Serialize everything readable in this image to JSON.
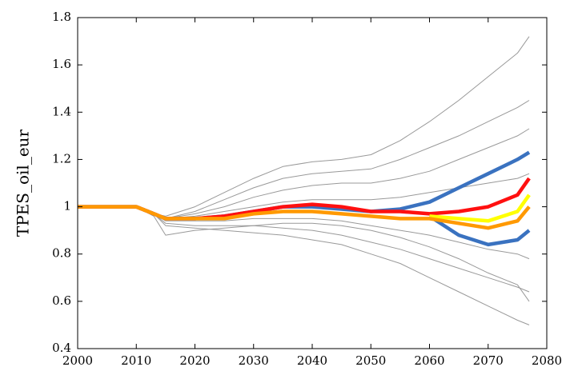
{
  "chart_data": {
    "type": "line",
    "y_label": "TPES_oil_eur",
    "x": [
      2000,
      2010,
      2013,
      2015,
      2020,
      2025,
      2030,
      2035,
      2040,
      2045,
      2050,
      2055,
      2060,
      2065,
      2070,
      2075,
      2077
    ],
    "xlim": [
      2000,
      2080
    ],
    "xticks": [
      2000,
      2010,
      2020,
      2030,
      2040,
      2050,
      2060,
      2070,
      2080
    ],
    "ylim": [
      0.4,
      1.8
    ],
    "yticks": [
      0.4,
      0.6,
      0.8,
      1,
      1.2,
      1.4,
      1.6,
      1.8
    ],
    "grid": false,
    "series": [
      {
        "color": "#999999",
        "values": [
          1,
          1,
          0.97,
          0.96,
          1.0,
          1.06,
          1.12,
          1.17,
          1.19,
          1.2,
          1.22,
          1.28,
          1.36,
          1.45,
          1.55,
          1.65,
          1.72
        ]
      },
      {
        "color": "#999999",
        "values": [
          1,
          1,
          0.97,
          0.95,
          0.98,
          1.03,
          1.08,
          1.12,
          1.14,
          1.15,
          1.16,
          1.2,
          1.25,
          1.3,
          1.36,
          1.42,
          1.45
        ]
      },
      {
        "color": "#999999",
        "values": [
          1,
          1,
          0.97,
          0.95,
          0.97,
          1.0,
          1.04,
          1.07,
          1.09,
          1.1,
          1.1,
          1.12,
          1.15,
          1.2,
          1.25,
          1.3,
          1.33
        ]
      },
      {
        "color": "#999999",
        "values": [
          1,
          1,
          0.97,
          0.95,
          0.96,
          0.98,
          1.0,
          1.02,
          1.03,
          1.03,
          1.03,
          1.04,
          1.06,
          1.08,
          1.1,
          1.12,
          1.14
        ]
      },
      {
        "color": "#999999",
        "values": [
          1,
          1,
          0.97,
          0.94,
          0.94,
          0.94,
          0.95,
          0.95,
          0.95,
          0.94,
          0.92,
          0.9,
          0.88,
          0.85,
          0.82,
          0.8,
          0.78
        ]
      },
      {
        "color": "#999999",
        "values": [
          1,
          1,
          0.97,
          0.93,
          0.92,
          0.92,
          0.92,
          0.91,
          0.9,
          0.88,
          0.85,
          0.82,
          0.78,
          0.74,
          0.7,
          0.66,
          0.64
        ]
      },
      {
        "color": "#999999",
        "values": [
          1,
          1,
          0.97,
          0.92,
          0.91,
          0.9,
          0.89,
          0.88,
          0.86,
          0.84,
          0.8,
          0.76,
          0.7,
          0.64,
          0.58,
          0.52,
          0.5
        ]
      },
      {
        "color": "#999999",
        "values": [
          1,
          1,
          0.96,
          0.88,
          0.9,
          0.91,
          0.92,
          0.93,
          0.93,
          0.92,
          0.9,
          0.87,
          0.83,
          0.78,
          0.72,
          0.67,
          0.6
        ]
      },
      {
        "color": "#3a72c0",
        "values": [
          1,
          1,
          0.97,
          0.95,
          0.95,
          0.96,
          0.98,
          1.0,
          1.0,
          0.99,
          0.98,
          0.99,
          1.02,
          1.08,
          1.14,
          1.2,
          1.23
        ]
      },
      {
        "color": "#3a72c0",
        "values": [
          null,
          null,
          null,
          null,
          null,
          null,
          null,
          null,
          null,
          null,
          null,
          null,
          0.96,
          0.88,
          0.84,
          0.86,
          0.9
        ]
      },
      {
        "color": "#ff1010",
        "values": [
          1,
          1,
          0.97,
          0.95,
          0.95,
          0.96,
          0.98,
          1.0,
          1.01,
          1.0,
          0.98,
          0.98,
          0.97,
          0.98,
          1.0,
          1.05,
          1.12
        ]
      },
      {
        "color": "#ffff00",
        "values": [
          null,
          null,
          null,
          null,
          null,
          null,
          null,
          null,
          null,
          null,
          null,
          null,
          0.96,
          0.95,
          0.94,
          0.98,
          1.05
        ]
      },
      {
        "color": "#ff9900",
        "values": [
          1,
          1,
          0.97,
          0.95,
          0.95,
          0.95,
          0.97,
          0.98,
          0.98,
          0.97,
          0.96,
          0.95,
          0.95,
          0.93,
          0.91,
          0.94,
          1.0
        ]
      }
    ]
  }
}
